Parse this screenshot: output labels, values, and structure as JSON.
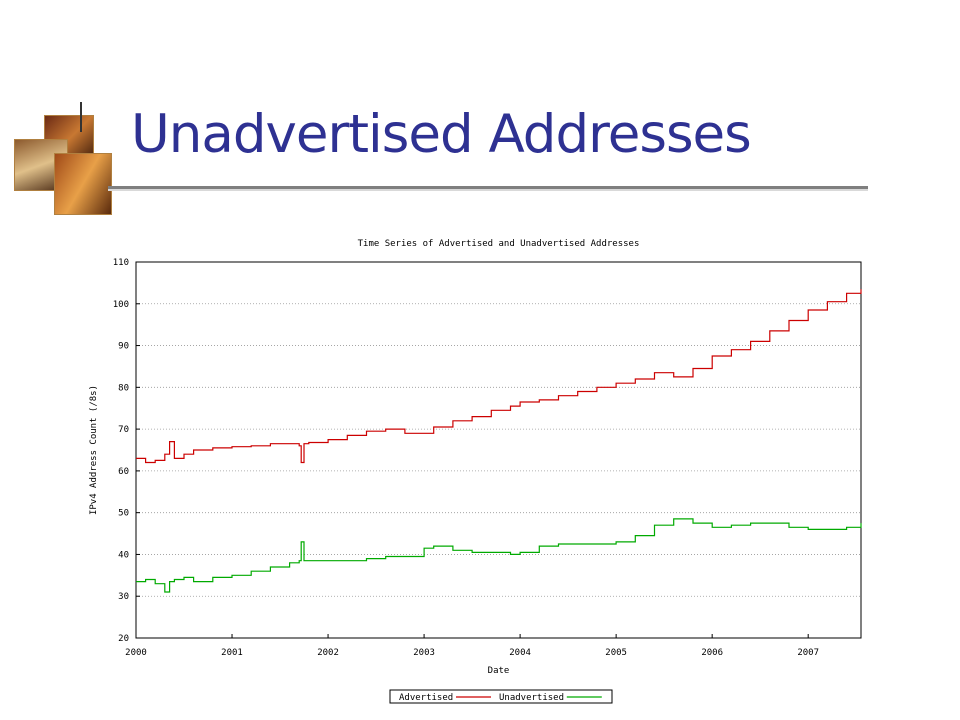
{
  "slide": {
    "title": "Unadvertised Addresses"
  },
  "chart_data": {
    "type": "line",
    "title": "Time Series of Advertised and Unadvertised Addresses",
    "xlabel": "Date",
    "ylabel": "IPv4 Address Count (/8s)",
    "xlim": [
      2000,
      2007.55
    ],
    "ylim": [
      20,
      110
    ],
    "x_ticks": [
      "2000",
      "2001",
      "2002",
      "2003",
      "2004",
      "2005",
      "2006",
      "2007"
    ],
    "y_ticks": [
      "20",
      "30",
      "40",
      "50",
      "60",
      "70",
      "80",
      "90",
      "100",
      "110"
    ],
    "grid": true,
    "legend_position": "bottom-center",
    "series": [
      {
        "name": "Advertised",
        "color": "#cc0000",
        "x": [
          2000.0,
          2000.1,
          2000.2,
          2000.3,
          2000.35,
          2000.4,
          2000.5,
          2000.6,
          2000.8,
          2001.0,
          2001.2,
          2001.4,
          2001.6,
          2001.7,
          2001.72,
          2001.75,
          2001.8,
          2002.0,
          2002.2,
          2002.4,
          2002.6,
          2002.8,
          2003.0,
          2003.1,
          2003.3,
          2003.5,
          2003.7,
          2003.9,
          2004.0,
          2004.2,
          2004.4,
          2004.6,
          2004.8,
          2005.0,
          2005.2,
          2005.4,
          2005.6,
          2005.8,
          2006.0,
          2006.2,
          2006.4,
          2006.6,
          2006.8,
          2007.0,
          2007.2,
          2007.4,
          2007.55
        ],
        "values": [
          63,
          62,
          62.5,
          64,
          67,
          63,
          64,
          65,
          65.5,
          65.8,
          66,
          66.5,
          66.5,
          66,
          62,
          66.5,
          66.8,
          67.5,
          68.5,
          69.5,
          70,
          69,
          69,
          70.5,
          72,
          73,
          74.5,
          75.5,
          76.5,
          77,
          78,
          79,
          80,
          81,
          82,
          83.5,
          82.5,
          84.5,
          87.5,
          89,
          91,
          93.5,
          96,
          98.5,
          100.5,
          102.5,
          103.5
        ]
      },
      {
        "name": "Unadvertised",
        "color": "#00aa00",
        "x": [
          2000.0,
          2000.1,
          2000.2,
          2000.3,
          2000.35,
          2000.4,
          2000.5,
          2000.6,
          2000.8,
          2001.0,
          2001.2,
          2001.4,
          2001.6,
          2001.7,
          2001.72,
          2001.75,
          2001.8,
          2002.0,
          2002.2,
          2002.4,
          2002.6,
          2002.8,
          2003.0,
          2003.1,
          2003.3,
          2003.5,
          2003.7,
          2003.9,
          2004.0,
          2004.2,
          2004.4,
          2004.6,
          2004.8,
          2005.0,
          2005.2,
          2005.4,
          2005.6,
          2005.8,
          2006.0,
          2006.2,
          2006.4,
          2006.6,
          2006.8,
          2007.0,
          2007.2,
          2007.4,
          2007.55
        ],
        "values": [
          33.5,
          34,
          33,
          31,
          33.5,
          34,
          34.5,
          33.5,
          34.5,
          35,
          36,
          37,
          38,
          38.5,
          43,
          38.5,
          38.5,
          38.5,
          38.5,
          39,
          39.5,
          39.5,
          41.5,
          42,
          41,
          40.5,
          40.5,
          40,
          40.5,
          42,
          42.5,
          42.5,
          42.5,
          43,
          44.5,
          47,
          48.5,
          47.5,
          46.5,
          47,
          47.5,
          47.5,
          46.5,
          46,
          46,
          46.5,
          47.5
        ]
      }
    ]
  }
}
